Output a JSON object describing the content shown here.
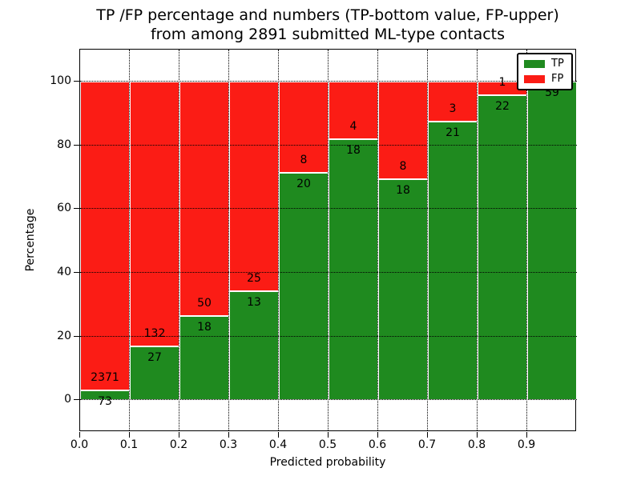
{
  "chart_data": {
    "type": "bar",
    "stacked": true,
    "title_line1": "TP /FP percentage and numbers (TP-bottom value, FP-upper)",
    "title_line2": "from among 2891 submitted ML-type contacts",
    "xlabel": "Predicted probability",
    "ylabel": "Percentage",
    "xlim": [
      0.0,
      1.0
    ],
    "ylim": [
      -10,
      110
    ],
    "bin_width": 0.1,
    "xticks": [
      0.0,
      0.1,
      0.2,
      0.3,
      0.4,
      0.5,
      0.6,
      0.7,
      0.8,
      0.9
    ],
    "xtick_labels": [
      "0.0",
      "0.1",
      "0.2",
      "0.3",
      "0.4",
      "0.5",
      "0.6",
      "0.7",
      "0.8",
      "0.9"
    ],
    "yticks": [
      0,
      20,
      40,
      60,
      80,
      100
    ],
    "ytick_labels": [
      "0",
      "20",
      "40",
      "60",
      "80",
      "100"
    ],
    "grid": true,
    "total_contacts": 2891,
    "bins": [
      {
        "range": "0.0-0.1",
        "tp": 73,
        "fp": 2371
      },
      {
        "range": "0.1-0.2",
        "tp": 27,
        "fp": 132
      },
      {
        "range": "0.2-0.3",
        "tp": 18,
        "fp": 50
      },
      {
        "range": "0.3-0.4",
        "tp": 13,
        "fp": 25
      },
      {
        "range": "0.4-0.5",
        "tp": 20,
        "fp": 8
      },
      {
        "range": "0.5-0.6",
        "tp": 18,
        "fp": 4
      },
      {
        "range": "0.6-0.7",
        "tp": 18,
        "fp": 8
      },
      {
        "range": "0.7-0.8",
        "tp": 21,
        "fp": 3
      },
      {
        "range": "0.8-0.9",
        "tp": 22,
        "fp": 1
      },
      {
        "range": "0.9-1.0",
        "tp": 59,
        "fp": 0
      }
    ],
    "legend": [
      {
        "label": "TP",
        "color": "#1f8a1f"
      },
      {
        "label": "FP",
        "color": "#fb1c15"
      }
    ],
    "legend_position": "upper right",
    "colors": {
      "tp": "#1f8a1f",
      "fp": "#fb1c15",
      "axis": "#000000",
      "background": "#ffffff"
    }
  }
}
